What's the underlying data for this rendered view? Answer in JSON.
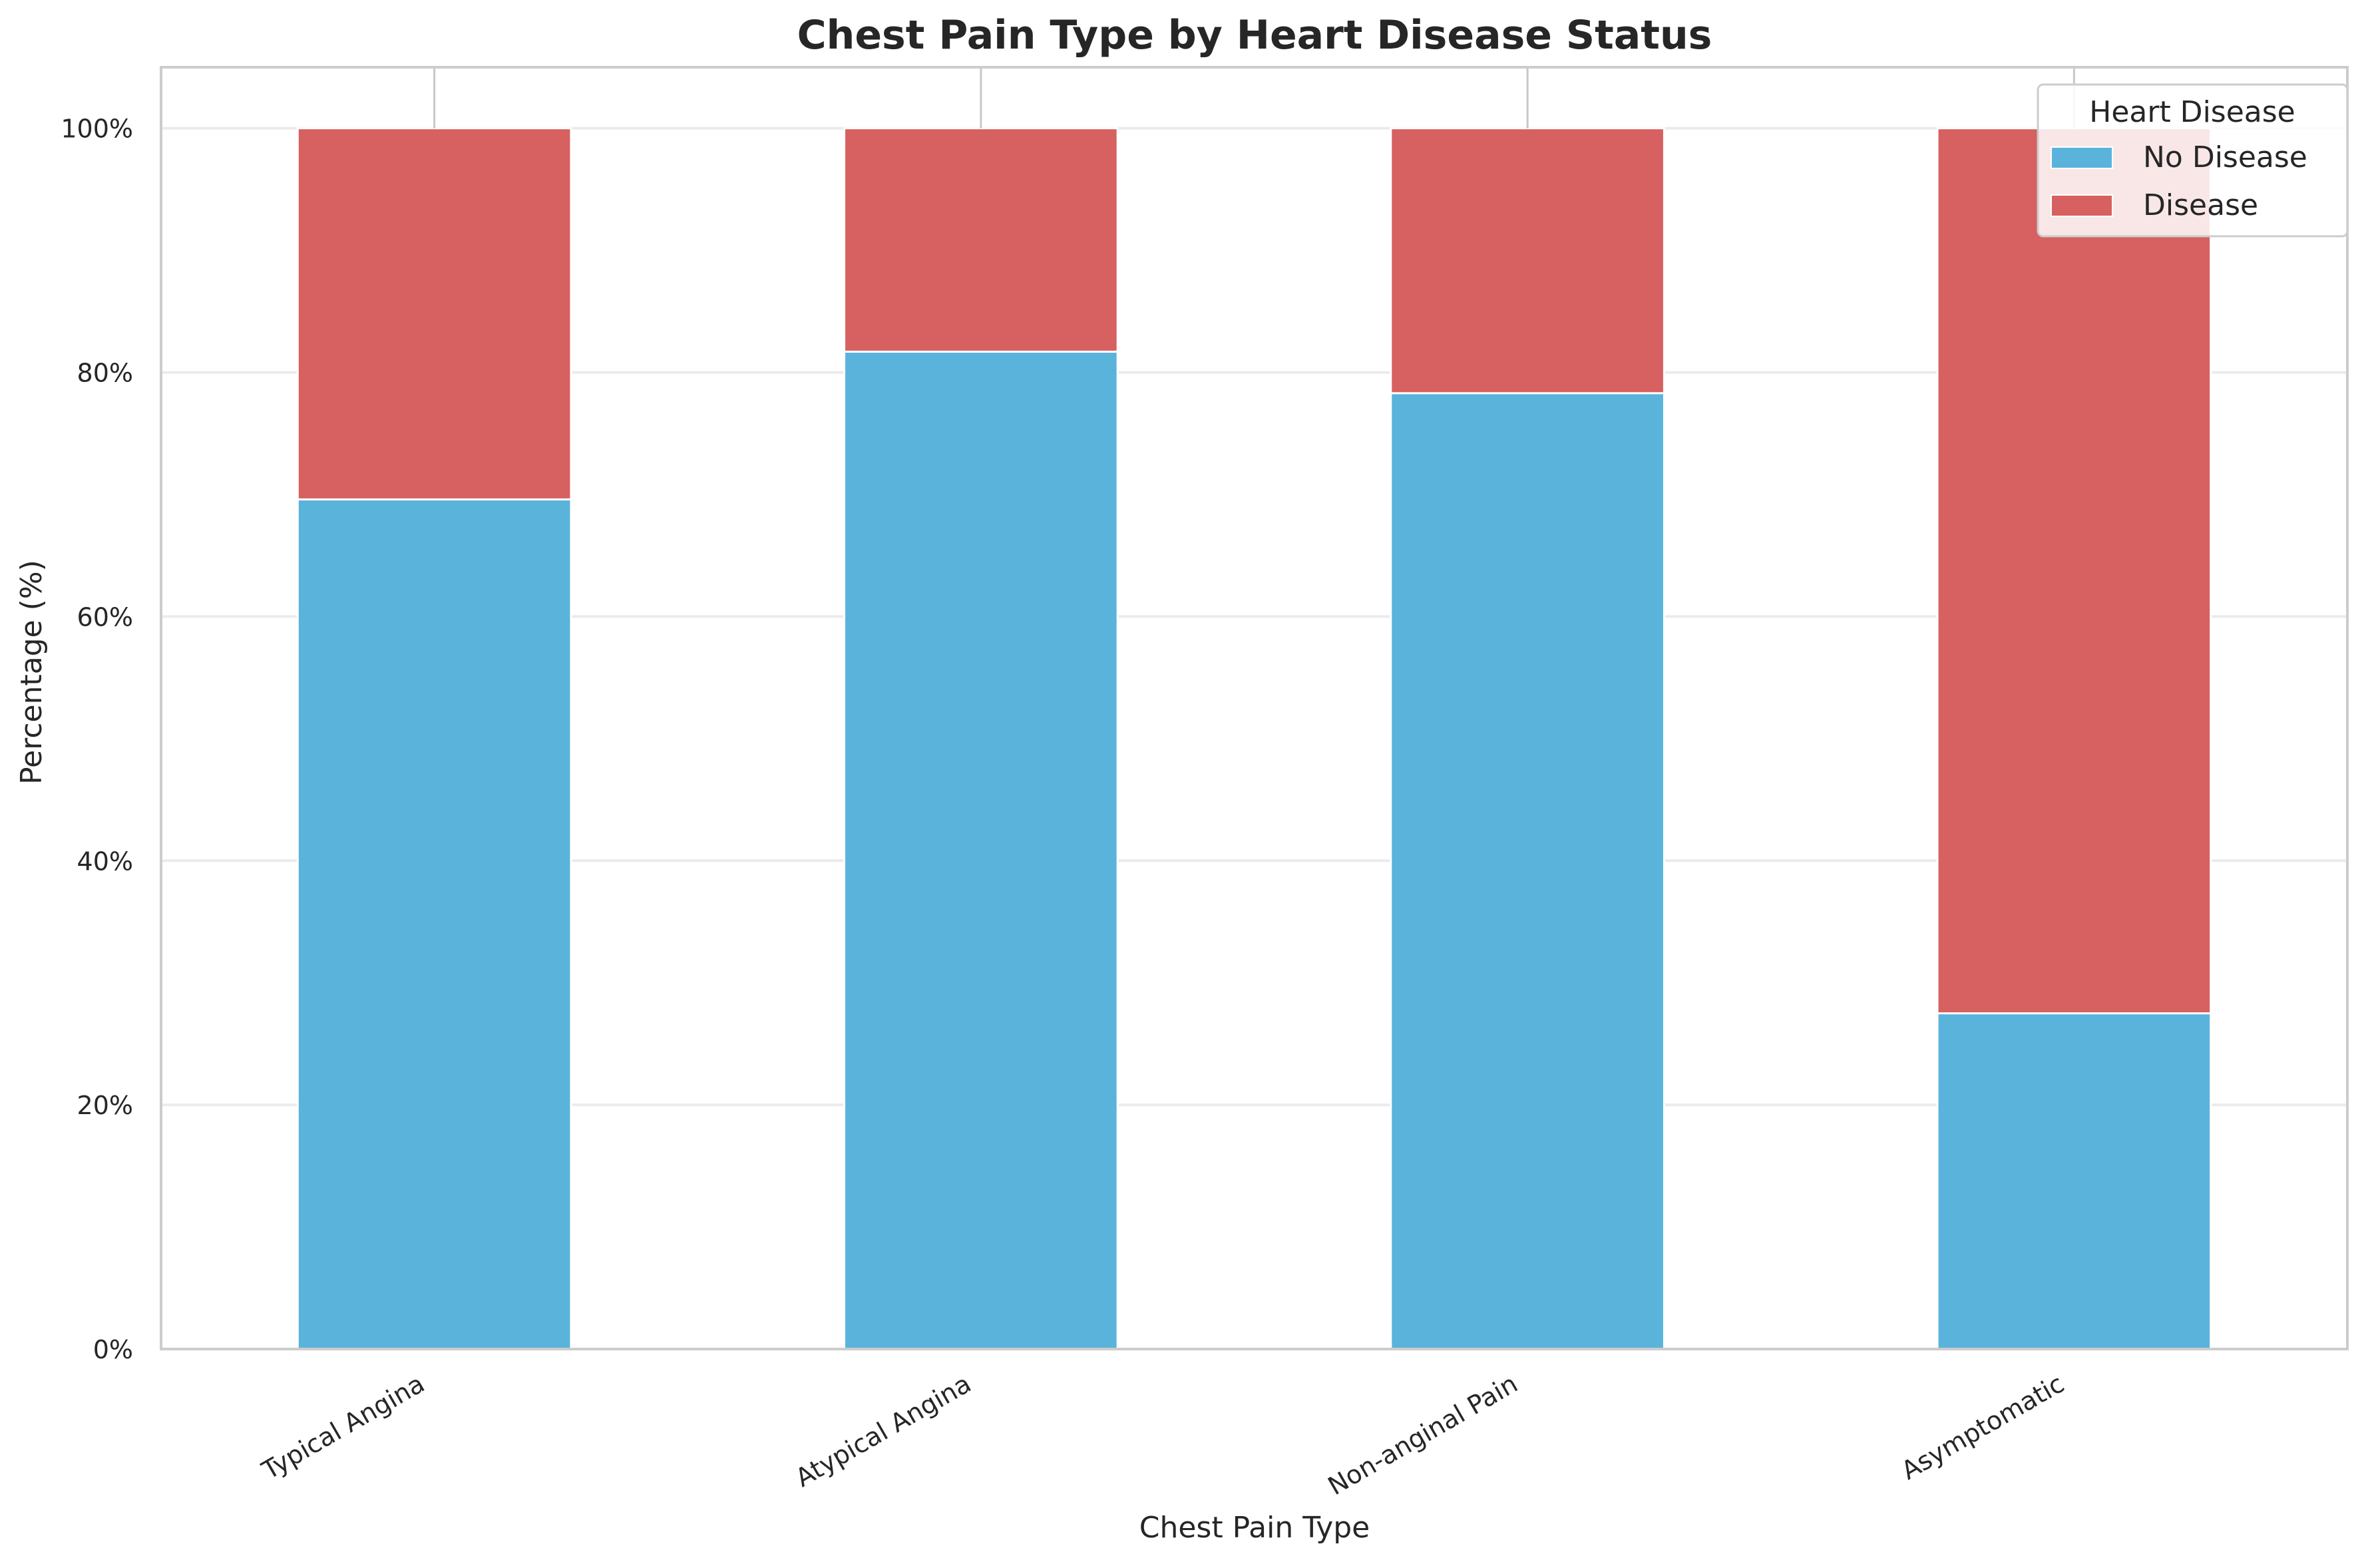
{
  "chart_data": {
    "type": "bar",
    "stacked": true,
    "title": "Chest Pain Type by Heart Disease Status",
    "xlabel": "Chest Pain Type",
    "ylabel": "Percentage (%)",
    "categories": [
      "Typical Angina",
      "Atypical Angina",
      "Non-anginal Pain",
      "Asymptomatic"
    ],
    "series": [
      {
        "name": "No Disease",
        "color": "#5ab3db",
        "values": [
          69.6,
          81.7,
          78.3,
          27.5
        ]
      },
      {
        "name": "Disease",
        "color": "#d76060",
        "values": [
          30.4,
          18.3,
          21.7,
          72.5
        ]
      }
    ],
    "ylim": [
      0,
      105
    ],
    "yticks": [
      0,
      20,
      40,
      60,
      80,
      100
    ],
    "ytick_labels": [
      "0%",
      "20%",
      "40%",
      "60%",
      "80%",
      "100%"
    ],
    "grid": true,
    "legend": {
      "title": "Heart Disease",
      "position": "top-right"
    }
  }
}
